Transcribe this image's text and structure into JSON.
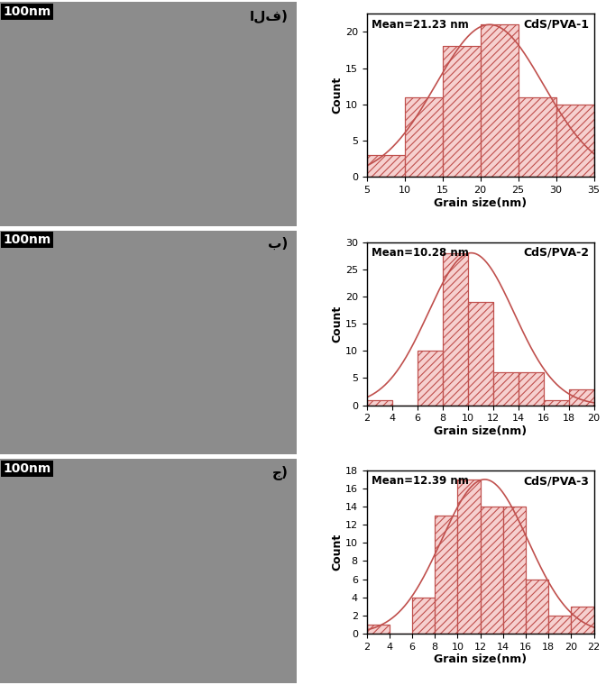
{
  "chart_data": [
    {
      "type": "histogram",
      "title": "CdS/PVA-1",
      "annotation": "Mean=21.23 nm",
      "x_label": "Grain size(nm)",
      "y_label": "Count",
      "bins": [
        5,
        10,
        15,
        20,
        25,
        30,
        35
      ],
      "counts": [
        3,
        11,
        18,
        21,
        11,
        10
      ],
      "fit": {
        "mean": 21.23,
        "sigma": 7.1,
        "amplitude": 21
      },
      "color": "#c0504d",
      "xlim": [
        5,
        35
      ],
      "xticks": [
        5,
        10,
        15,
        20,
        25,
        30,
        35
      ],
      "ylim": [
        0,
        22.5
      ],
      "yticks": [
        0,
        5,
        10,
        15,
        20
      ]
    },
    {
      "type": "histogram",
      "title": "CdS/PVA-2",
      "annotation": "Mean=10.28 nm",
      "x_label": "Grain size(nm)",
      "y_label": "Count",
      "bins": [
        2,
        4,
        6,
        8,
        10,
        12,
        14,
        16,
        18,
        20
      ],
      "counts": [
        1,
        0,
        10,
        28,
        19,
        6,
        6,
        1,
        3
      ],
      "fit": {
        "mean": 10.28,
        "sigma": 3.4,
        "amplitude": 28
      },
      "color": "#c0504d",
      "xlim": [
        2,
        20
      ],
      "xticks": [
        2,
        4,
        6,
        8,
        10,
        12,
        14,
        16,
        18,
        20
      ],
      "ylim": [
        0,
        30
      ],
      "yticks": [
        0,
        5,
        10,
        15,
        20,
        25,
        30
      ]
    },
    {
      "type": "histogram",
      "title": "CdS/PVA-3",
      "annotation": "Mean=12.39 nm",
      "x_label": "Grain size(nm)",
      "y_label": "Count",
      "bins": [
        2,
        4,
        6,
        8,
        10,
        12,
        14,
        16,
        18,
        20,
        22
      ],
      "counts": [
        1,
        0,
        4,
        13,
        17,
        14,
        14,
        6,
        2,
        3
      ],
      "fit": {
        "mean": 12.39,
        "sigma": 3.8,
        "amplitude": 17
      },
      "color": "#c0504d",
      "xlim": [
        2,
        22
      ],
      "xticks": [
        2,
        4,
        6,
        8,
        10,
        12,
        14,
        16,
        18,
        20,
        22
      ],
      "ylim": [
        0,
        18
      ],
      "yticks": [
        0,
        2,
        4,
        6,
        8,
        10,
        12,
        14,
        16,
        18
      ]
    }
  ],
  "images": [
    {
      "scale_bar": "100nm",
      "label": "الف)"
    },
    {
      "scale_bar": "100nm",
      "label": "ب)"
    },
    {
      "scale_bar": "100nm",
      "label": "ج)"
    }
  ]
}
